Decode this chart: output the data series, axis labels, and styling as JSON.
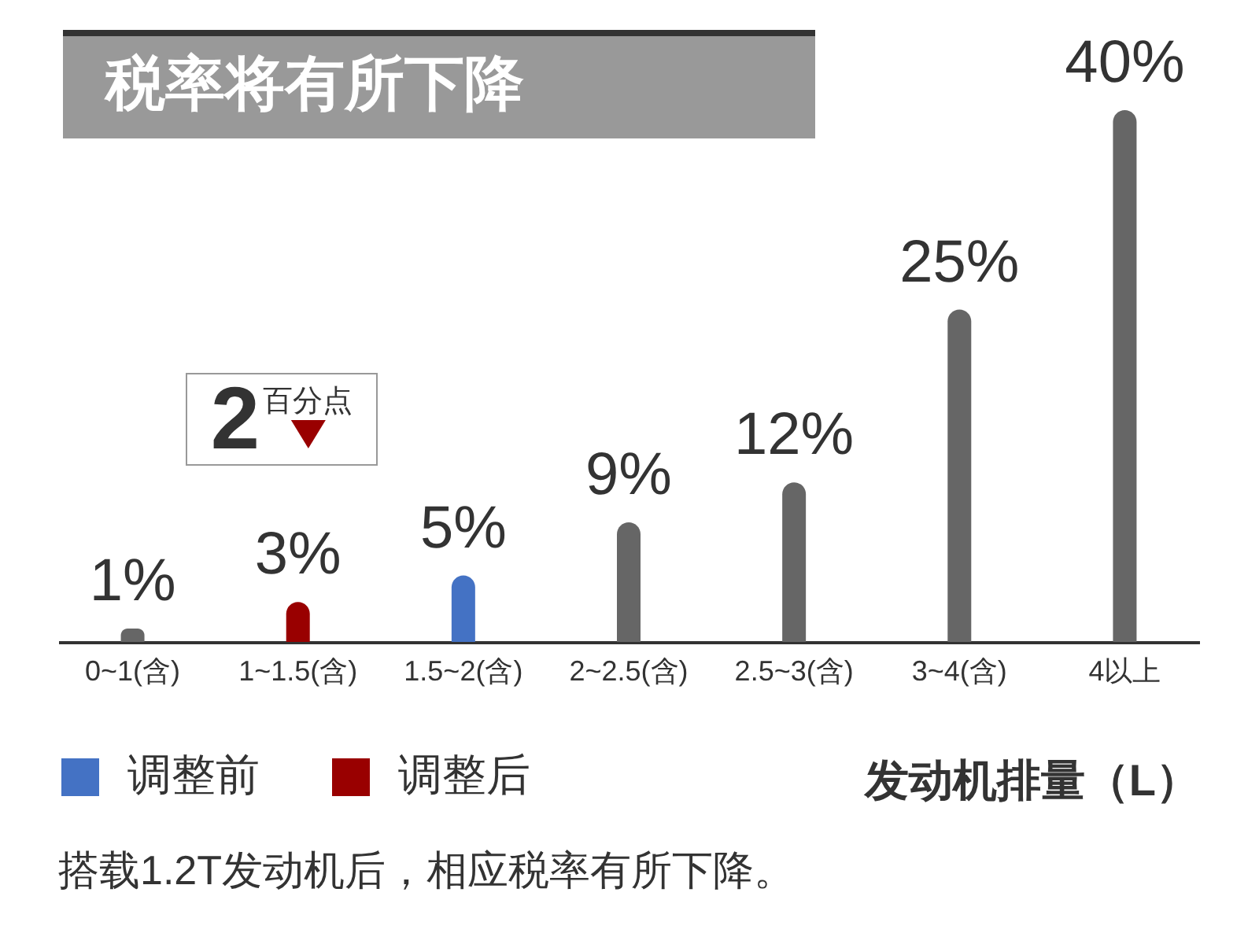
{
  "chart_data": {
    "type": "bar",
    "title": "税率将有所下降",
    "xlabel": "发动机排量（L）",
    "categories": [
      "0~1(含)",
      "1~1.5(含)",
      "1.5~2(含)",
      "2~2.5(含)",
      "2.5~3(含)",
      "3~4(含)",
      "4以上"
    ],
    "series": [
      {
        "name": "调整前",
        "color": "#4472c4",
        "values": [
          null,
          null,
          5,
          null,
          null,
          null,
          null
        ],
        "value_labels": [
          null,
          null,
          "5%",
          null,
          null,
          null,
          null
        ]
      },
      {
        "name": "调整后",
        "color": "#990000",
        "values": [
          null,
          3,
          null,
          null,
          null,
          null,
          null
        ],
        "value_labels": [
          null,
          "3%",
          null,
          null,
          null,
          null,
          null
        ]
      },
      {
        "color": "#666666",
        "values": [
          1,
          null,
          null,
          9,
          12,
          25,
          40
        ],
        "value_labels": [
          "1%",
          null,
          null,
          "9%",
          "12%",
          "25%",
          "40%"
        ]
      }
    ],
    "legend": "bottom left",
    "tick_labels": "x",
    "annotations": [
      "2百分点",
      "搭载1.2T发动机后，相应税率有所下降。"
    ]
  }
}
